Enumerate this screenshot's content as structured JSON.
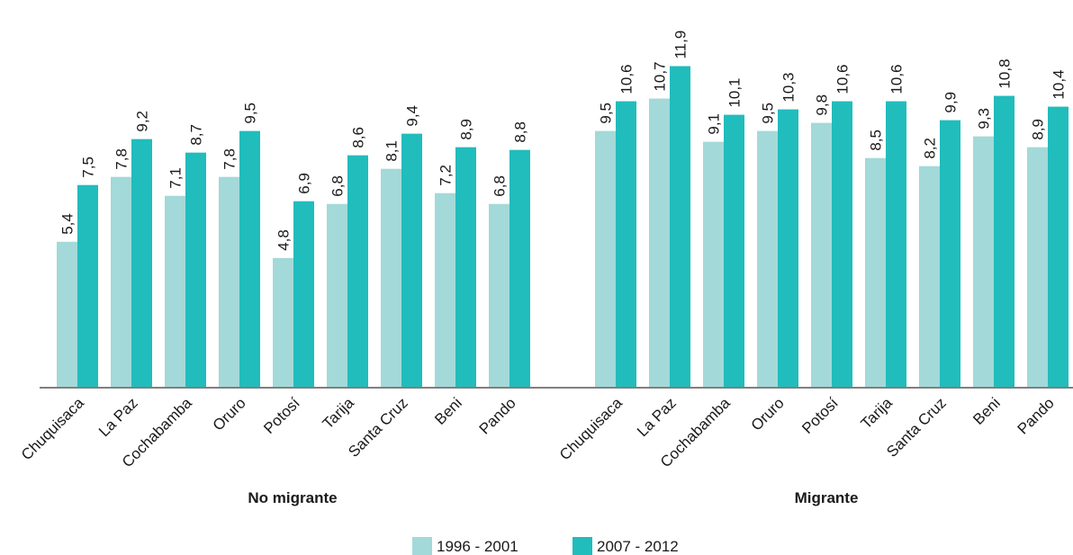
{
  "chart_data": {
    "type": "bar",
    "title": "",
    "xlabel": "",
    "ylabel": "",
    "ylim": [
      0,
      12.5
    ],
    "grid": false,
    "legend_position": "bottom-center",
    "colors": {
      "1996 - 2001": "#a3d9d9",
      "2007 - 2012": "#21bcbc",
      "axis": "#7f7f7f"
    },
    "groups": [
      {
        "name": "No migrante",
        "categories": [
          "Chuquisaca",
          "La Paz",
          "Cochabamba",
          "Oruro",
          "Potosí",
          "Tarija",
          "Santa Cruz",
          "Beni",
          "Pando"
        ],
        "series": [
          {
            "name": "1996 - 2001",
            "values": [
              5.4,
              7.8,
              7.1,
              7.8,
              4.8,
              6.8,
              8.1,
              7.2,
              6.8
            ],
            "labels": [
              "5,4",
              "7,8",
              "7,1",
              "7,8",
              "4,8",
              "6,8",
              "8,1",
              "7,2",
              "6,8"
            ]
          },
          {
            "name": "2007 - 2012",
            "values": [
              7.5,
              9.2,
              8.7,
              9.5,
              6.9,
              8.6,
              9.4,
              8.9,
              8.8
            ],
            "labels": [
              "7,5",
              "9,2",
              "8,7",
              "9,5",
              "6,9",
              "8,6",
              "9,4",
              "8,9",
              "8,8"
            ]
          }
        ]
      },
      {
        "name": "Migrante",
        "categories": [
          "Chuquisaca",
          "La Paz",
          "Cochabamba",
          "Oruro",
          "Potosí",
          "Tarija",
          "Santa Cruz",
          "Beni",
          "Pando"
        ],
        "series": [
          {
            "name": "1996 - 2001",
            "values": [
              9.5,
              10.7,
              9.1,
              9.5,
              9.8,
              8.5,
              8.2,
              9.3,
              8.9
            ],
            "labels": [
              "9,5",
              "10,7",
              "9,1",
              "9,5",
              "9,8",
              "8,5",
              "8,2",
              "9,3",
              "8,9"
            ]
          },
          {
            "name": "2007 - 2012",
            "values": [
              10.6,
              11.9,
              10.1,
              10.3,
              10.6,
              10.6,
              9.9,
              10.8,
              10.4
            ],
            "labels": [
              "10,6",
              "11,9",
              "10,1",
              "10,3",
              "10,6",
              "10,6",
              "9,9",
              "10,8",
              "10,4"
            ]
          }
        ]
      }
    ]
  }
}
